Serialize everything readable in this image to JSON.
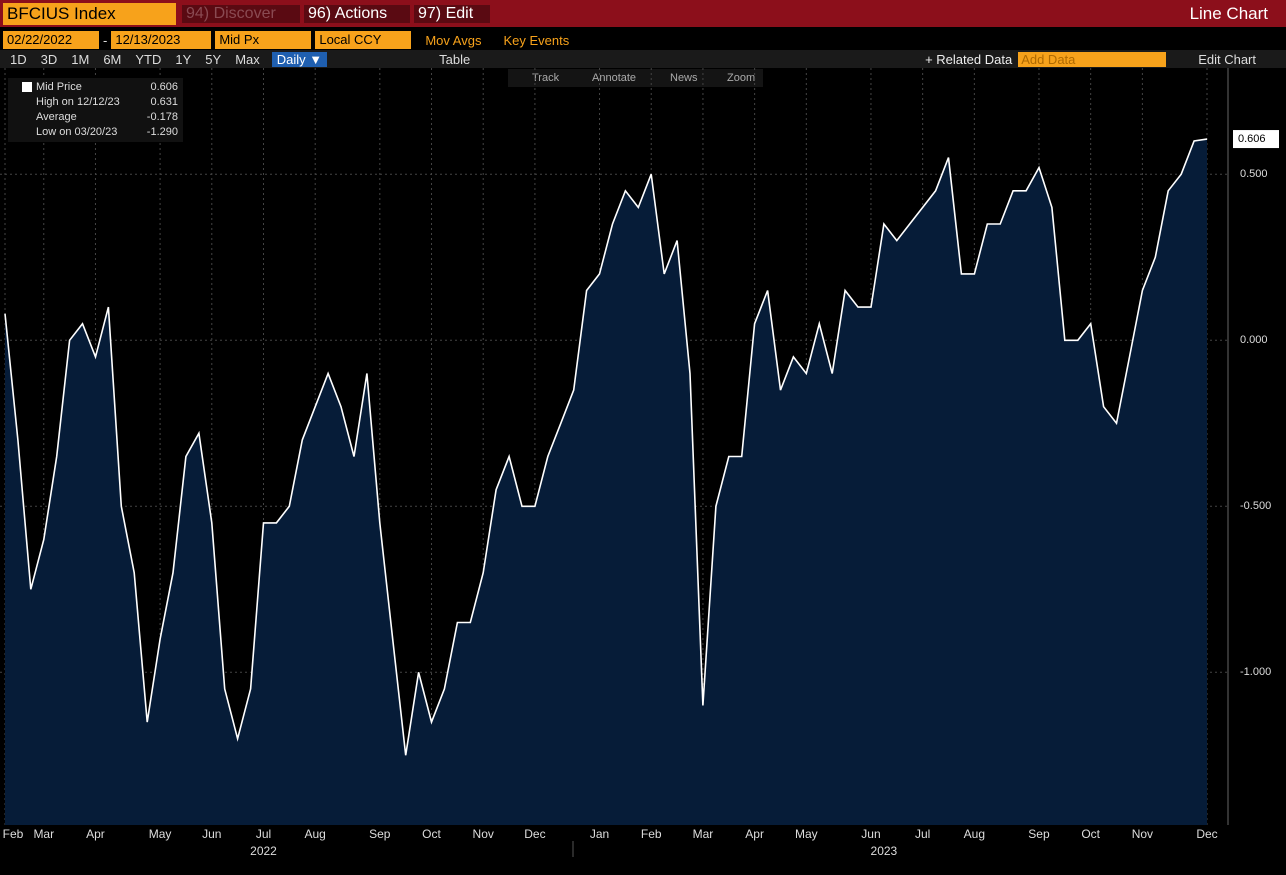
{
  "ui": {
    "ticker": "BFCIUS Index",
    "menus": [
      "94) Discover",
      "96) Actions",
      "97) Edit"
    ],
    "chart_kind": "Line Chart",
    "start_date": "02/22/2022",
    "date_sep": "-",
    "end_date": "12/13/2023",
    "field": "Mid Px",
    "currency": "Local CCY",
    "mov_avgs": "Mov Avgs",
    "key_events": "Key Events",
    "periods": [
      "1D",
      "3D",
      "1M",
      "6M",
      "YTD",
      "1Y",
      "5Y",
      "Max"
    ],
    "frequency": "Daily ▼",
    "table": "Table",
    "related": "+ Related Data",
    "add_data": "Add Data",
    "edit_chart": "Edit Chart",
    "tools": [
      "Track",
      "Annotate",
      "News",
      "Zoom"
    ]
  },
  "chart_data": {
    "type": "line",
    "color": "#ffffff",
    "fill": "#061c38",
    "legend": [
      {
        "label": "Mid Price",
        "value": "0.606"
      },
      {
        "label": "High on 12/12/23",
        "value": "0.631"
      },
      {
        "label": "Average",
        "value": "-0.178"
      },
      {
        "label": "Low on 03/20/23",
        "value": "-1.290"
      }
    ],
    "categories": [
      "Feb",
      null,
      null,
      "Mar",
      null,
      null,
      null,
      "Apr",
      null,
      null,
      null,
      null,
      "May",
      null,
      null,
      null,
      "Jun",
      null,
      null,
      null,
      "Jul",
      null,
      null,
      null,
      "Aug",
      null,
      null,
      null,
      null,
      "Sep",
      null,
      null,
      null,
      "Oct",
      null,
      null,
      null,
      "Nov",
      null,
      null,
      null,
      "Dec",
      null,
      null,
      null,
      null,
      "Jan",
      null,
      null,
      null,
      "Feb",
      null,
      null,
      null,
      "Mar",
      null,
      null,
      null,
      "Apr",
      null,
      null,
      null,
      "May",
      null,
      null,
      null,
      null,
      "Jun",
      null,
      null,
      null,
      "Jul",
      null,
      null,
      null,
      "Aug",
      null,
      null,
      null,
      null,
      "Sep",
      null,
      null,
      null,
      "Oct",
      null,
      null,
      null,
      "Nov",
      null,
      null,
      null,
      null,
      "Dec"
    ],
    "years": [
      {
        "label": "2022",
        "index": 20
      },
      {
        "label": "2023",
        "index": 68
      }
    ],
    "values": [
      0.08,
      -0.3,
      -0.75,
      -0.6,
      -0.35,
      0.0,
      0.05,
      -0.05,
      0.1,
      -0.5,
      -0.7,
      -1.15,
      -0.9,
      -0.7,
      -0.35,
      -0.28,
      -0.55,
      -1.05,
      -1.2,
      -1.05,
      -0.55,
      -0.55,
      -0.5,
      -0.3,
      -0.2,
      -0.1,
      -0.2,
      -0.35,
      -0.1,
      -0.55,
      -0.9,
      -1.25,
      -1.0,
      -1.15,
      -1.05,
      -0.85,
      -0.85,
      -0.7,
      -0.45,
      -0.35,
      -0.5,
      -0.5,
      -0.35,
      -0.25,
      -0.15,
      0.15,
      0.2,
      0.35,
      0.45,
      0.4,
      0.5,
      0.2,
      0.3,
      -0.1,
      -1.1,
      -0.5,
      -0.35,
      -0.35,
      0.05,
      0.15,
      -0.15,
      -0.05,
      -0.1,
      0.05,
      -0.1,
      0.15,
      0.1,
      0.1,
      0.35,
      0.3,
      0.35,
      0.4,
      0.45,
      0.55,
      0.2,
      0.2,
      0.35,
      0.35,
      0.45,
      0.45,
      0.52,
      0.4,
      0.0,
      0.0,
      0.05,
      -0.2,
      -0.25,
      -0.05,
      0.15,
      0.25,
      0.45,
      0.5,
      0.6,
      0.606
    ],
    "ylim": [
      -1.46,
      0.82
    ],
    "yticks": [
      {
        "value": -1,
        "label": "-1.000"
      },
      {
        "value": -0.5,
        "label": "-0.500"
      },
      {
        "value": 0,
        "label": "0.000"
      },
      {
        "value": 0.5,
        "label": "0.500"
      }
    ]
  }
}
